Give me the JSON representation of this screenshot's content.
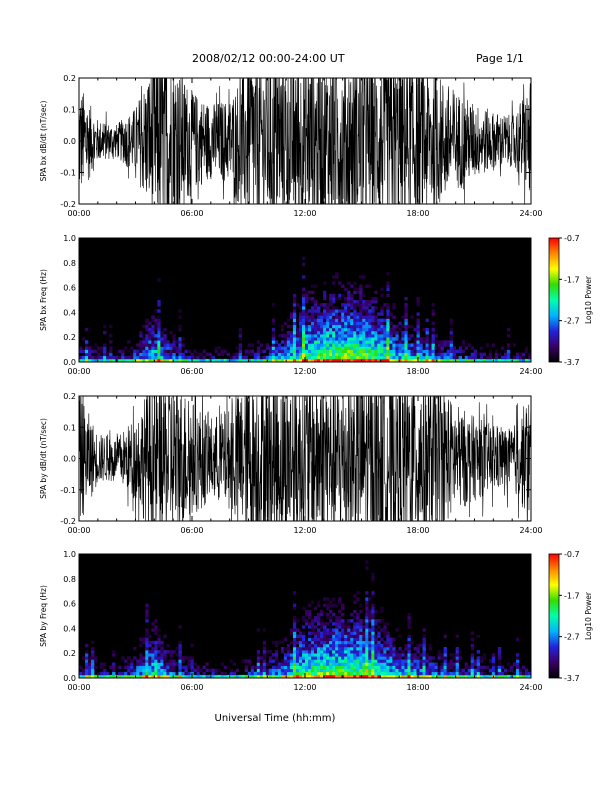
{
  "header": {
    "title": "2008/02/12  00:00-24:00 UT",
    "page": "Page 1/1"
  },
  "footer": {
    "xlabel": "Universal Time (hh:mm)"
  },
  "colors": {
    "waveform": "#000000",
    "background": "#ffffff",
    "colormap": [
      "#000000",
      "#3a0066",
      "#2222dd",
      "#00b4ff",
      "#00ffaa",
      "#33dd00",
      "#ffff00",
      "#ff8800",
      "#ff0000"
    ]
  },
  "chart_data": [
    {
      "type": "line",
      "title": "",
      "xlabel": "",
      "ylabel": "SPA bx dB/dt (nT/sec)",
      "x_tick_labels": [
        "00:00",
        "06:00",
        "12:00",
        "18:00",
        "24:00"
      ],
      "xlim": [
        "00:00",
        "24:00"
      ],
      "y_tick_labels": [
        "-0.2",
        "-0.1",
        "0.0",
        "0.1",
        "0.2"
      ],
      "ylim": [
        -0.2,
        0.2
      ],
      "series": [
        {
          "x": [
            "00:00",
            "01:00",
            "02:00",
            "03:00",
            "04:00",
            "05:00",
            "06:00",
            "07:00",
            "08:00",
            "09:00",
            "10:00",
            "11:00",
            "12:00",
            "13:00",
            "14:00",
            "15:00",
            "16:00",
            "17:00",
            "18:00",
            "19:00",
            "20:00",
            "21:00",
            "22:00",
            "23:00",
            "24:00"
          ],
          "amplitude_envelope": [
            0.14,
            0.05,
            0.04,
            0.08,
            0.2,
            0.2,
            0.12,
            0.09,
            0.1,
            0.2,
            0.2,
            0.2,
            0.2,
            0.2,
            0.2,
            0.2,
            0.2,
            0.2,
            0.2,
            0.16,
            0.12,
            0.09,
            0.07,
            0.06,
            0.14
          ]
        }
      ]
    },
    {
      "type": "heatmap",
      "title": "",
      "xlabel": "",
      "ylabel": "SPA bx Freq (Hz)",
      "x_tick_labels": [
        "00:00",
        "06:00",
        "12:00",
        "18:00",
        "24:00"
      ],
      "xlim": [
        "00:00",
        "24:00"
      ],
      "y_tick_labels": [
        "0.0",
        "0.2",
        "0.4",
        "0.6",
        "0.8",
        "1.0"
      ],
      "ylim": [
        0.0,
        1.0
      ],
      "colorbar": {
        "label": "Log10 Power",
        "tick_labels": [
          "-0.7",
          "-1.7",
          "-2.7",
          "-3.7"
        ],
        "range": [
          -3.7,
          -0.7
        ]
      },
      "activity_profile": {
        "x": [
          "00:00",
          "02:00",
          "04:00",
          "05:00",
          "06:00",
          "08:00",
          "10:00",
          "11:00",
          "12:00",
          "13:00",
          "14:00",
          "15:00",
          "16:00",
          "17:00",
          "18:00",
          "20:00",
          "22:00",
          "24:00"
        ],
        "peak_log10_power": [
          -2.6,
          -3.0,
          -1.8,
          -2.4,
          -2.9,
          -3.0,
          -2.6,
          -2.0,
          -1.5,
          -1.3,
          -1.2,
          -1.3,
          -1.5,
          -1.9,
          -2.2,
          -2.6,
          -2.8,
          -2.9
        ]
      }
    },
    {
      "type": "line",
      "title": "",
      "xlabel": "",
      "ylabel": "SPA by dB/dt (nT/sec)",
      "x_tick_labels": [
        "00:00",
        "06:00",
        "12:00",
        "18:00",
        "24:00"
      ],
      "xlim": [
        "00:00",
        "24:00"
      ],
      "y_tick_labels": [
        "-0.2",
        "-0.1",
        "0.0",
        "0.1",
        "0.2"
      ],
      "ylim": [
        -0.2,
        0.2
      ],
      "series": [
        {
          "x": [
            "00:00",
            "01:00",
            "02:00",
            "03:00",
            "04:00",
            "05:00",
            "06:00",
            "07:00",
            "08:00",
            "09:00",
            "10:00",
            "11:00",
            "12:00",
            "13:00",
            "14:00",
            "15:00",
            "16:00",
            "17:00",
            "18:00",
            "19:00",
            "20:00",
            "21:00",
            "22:00",
            "23:00",
            "24:00"
          ],
          "amplitude_envelope": [
            0.16,
            0.06,
            0.05,
            0.1,
            0.2,
            0.2,
            0.14,
            0.1,
            0.12,
            0.2,
            0.2,
            0.2,
            0.2,
            0.2,
            0.2,
            0.2,
            0.2,
            0.2,
            0.2,
            0.18,
            0.13,
            0.1,
            0.08,
            0.07,
            0.16
          ]
        }
      ]
    },
    {
      "type": "heatmap",
      "title": "",
      "xlabel": "",
      "ylabel": "SPA by Freq (Hz)",
      "x_tick_labels": [
        "00:00",
        "06:00",
        "12:00",
        "18:00",
        "24:00"
      ],
      "xlim": [
        "00:00",
        "24:00"
      ],
      "y_tick_labels": [
        "0.0",
        "0.2",
        "0.4",
        "0.6",
        "0.8",
        "1.0"
      ],
      "ylim": [
        0.0,
        1.0
      ],
      "colorbar": {
        "label": "Log10 Power",
        "tick_labels": [
          "-0.7",
          "-1.7",
          "-2.7",
          "-3.7"
        ],
        "range": [
          -3.7,
          -0.7
        ]
      },
      "activity_profile": {
        "x": [
          "00:00",
          "02:00",
          "04:00",
          "05:00",
          "06:00",
          "08:00",
          "10:00",
          "11:00",
          "12:00",
          "13:00",
          "14:00",
          "15:00",
          "16:00",
          "17:00",
          "18:00",
          "20:00",
          "22:00",
          "24:00"
        ],
        "peak_log10_power": [
          -2.5,
          -2.9,
          -1.7,
          -2.4,
          -2.8,
          -2.9,
          -2.5,
          -2.0,
          -1.5,
          -1.4,
          -1.3,
          -1.3,
          -1.6,
          -2.0,
          -2.2,
          -2.6,
          -2.7,
          -2.8
        ]
      }
    }
  ]
}
